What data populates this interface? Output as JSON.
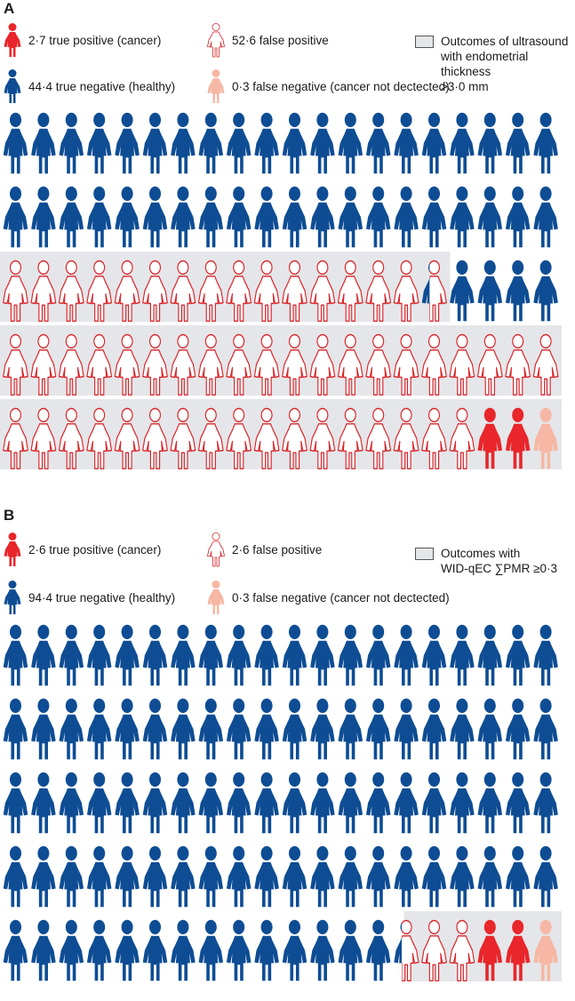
{
  "colors": {
    "true_positive": "#e8262b",
    "false_positive_stroke": "#d8262b",
    "false_positive_fill": "#ffffff",
    "true_negative": "#0e4d94",
    "false_negative": "#f6b7a4",
    "highlight_bg": "#e5e6e9",
    "legend_box_border": "#555555"
  },
  "icon": "woman-figure-icon",
  "panels": [
    {
      "label": "A",
      "legend": {
        "true_positive": "2·7 true positive (cancer)",
        "false_positive": "52·6 false positive",
        "true_negative": "44·4 true negative (healthy)",
        "false_negative": "0·3 false negative (cancer not dectected)",
        "box_label": "Outcomes of ultrasound\nwith endometrial thickness\n>3·0 mm"
      },
      "figure_counts": {
        "true_negative": 44.4,
        "false_positive": 52.6,
        "true_positive": 2.7,
        "false_negative": 0.3
      },
      "rows": [
        "NNNNNNNNNNNNNNNNNNNN",
        "NNNNNNNNNNNNNNNNNNNN",
        "FFFFFFFFFFFFFFFHNNNN",
        "FFFFFFFFFFFFFFFFFFFF",
        "FFFFFFFFFFFFFFFFFPPQ"
      ]
    },
    {
      "label": "B",
      "legend": {
        "true_positive": "2·6 true positive (cancer)",
        "false_positive": "2·6 false positive",
        "true_negative": "94·4 true negative (healthy)",
        "false_negative": "0·3 false negative (cancer not dectected)",
        "box_label": "Outcomes with\nWID-qEC ∑PMR ≥0·3"
      },
      "figure_counts": {
        "true_negative": 94.4,
        "false_positive": 2.6,
        "true_positive": 2.6,
        "false_negative": 0.3
      },
      "rows": [
        "NNNNNNNNNNNNNNNNNNNN",
        "NNNNNNNNNNNNNNNNNNNN",
        "NNNNNNNNNNNNNNNNNNNN",
        "NNNNNNNNNNNNNNNNNNNN",
        "NNNNNNNNNNNNNNHFFPPQ"
      ]
    }
  ]
}
